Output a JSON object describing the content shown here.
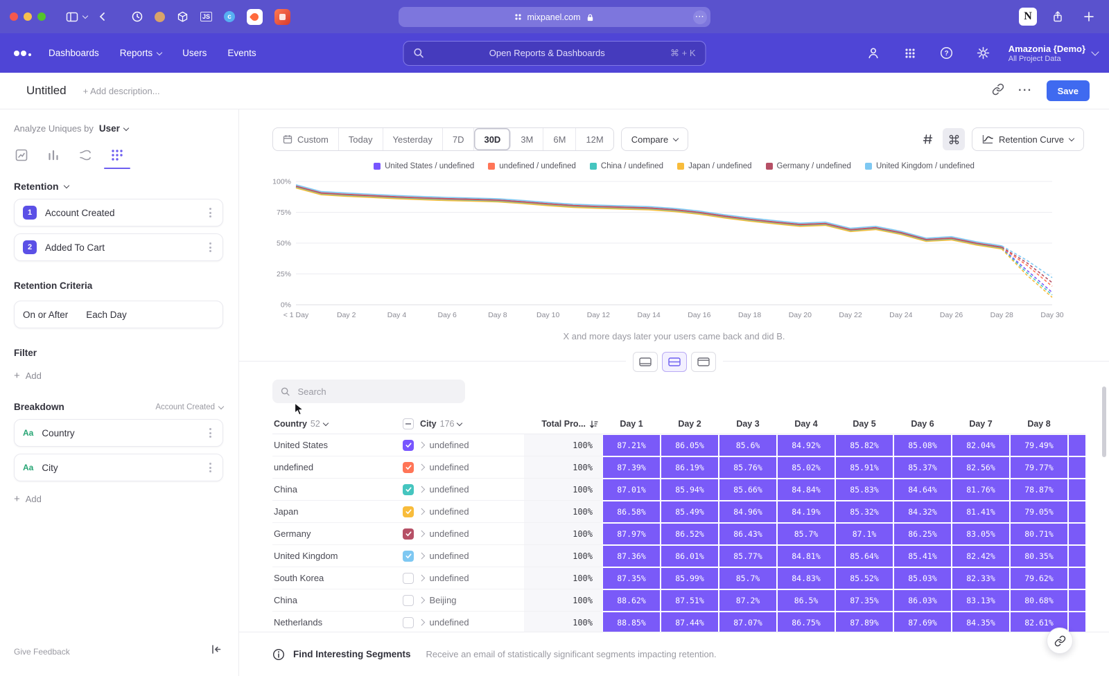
{
  "browser": {
    "url": "mixpanel.com",
    "notion_label": "N",
    "js_label": "JS",
    "c_label": "c"
  },
  "nav": {
    "items": [
      {
        "label": "Dashboards",
        "caret": false
      },
      {
        "label": "Reports",
        "caret": true
      },
      {
        "label": "Users",
        "caret": false
      },
      {
        "label": "Events",
        "caret": false
      }
    ],
    "search_placeholder": "Open Reports & Dashboards",
    "search_shortcut": "⌘ + K",
    "project_name": "Amazonia {Demo}",
    "project_scope": "All Project Data"
  },
  "header": {
    "title": "Untitled",
    "description_placeholder": "+ Add description...",
    "save_label": "Save"
  },
  "sidebar": {
    "analyze_prefix": "Analyze Uniques by",
    "analyze_value": "User",
    "section_title": "Retention",
    "steps": [
      {
        "num": "1",
        "label": "Account Created"
      },
      {
        "num": "2",
        "label": "Added To Cart"
      }
    ],
    "criteria_title": "Retention Criteria",
    "criteria_left": "On or After",
    "criteria_right": "Each Day",
    "filter_title": "Filter",
    "add_label": "Add",
    "breakdown_title": "Breakdown",
    "breakdown_scope": "Account Created",
    "breakdowns": [
      {
        "type": "Aa",
        "label": "Country"
      },
      {
        "type": "Aa",
        "label": "City"
      }
    ],
    "give_feedback": "Give Feedback"
  },
  "toolbar": {
    "date_ranges": [
      "Custom",
      "Today",
      "Yesterday",
      "7D",
      "30D",
      "3M",
      "6M",
      "12M"
    ],
    "selected_range": "30D",
    "compare_label": "Compare",
    "view_label": "Retention Curve"
  },
  "chart_data": {
    "type": "line",
    "ylim": [
      0,
      100
    ],
    "y_ticks": [
      "0%",
      "25%",
      "50%",
      "75%",
      "100%"
    ],
    "x_tick_labels": [
      "< 1 Day",
      "Day 2",
      "Day 4",
      "Day 6",
      "Day 8",
      "Day 10",
      "Day 12",
      "Day 14",
      "Day 16",
      "Day 18",
      "Day 20",
      "Day 22",
      "Day 24",
      "Day 26",
      "Day 28",
      "Day 30"
    ],
    "dash_from_index": 28,
    "legend_position": "top",
    "series": [
      {
        "name": "United States / undefined",
        "color": "#7856FF",
        "values": [
          95.5,
          90,
          88.8,
          87.8,
          86.8,
          86,
          85.3,
          84.8,
          84.2,
          82.8,
          81.2,
          79.8,
          79,
          78.4,
          77.8,
          76.4,
          74.2,
          71.2,
          68.6,
          66.4,
          64.4,
          65.2,
          60.2,
          61.8,
          57.8,
          52.2,
          53.4,
          49.2,
          46,
          28,
          10
        ]
      },
      {
        "name": "undefined / undefined",
        "color": "#FF7557",
        "values": [
          95.8,
          90.3,
          89.1,
          88.1,
          87.1,
          86.3,
          85.6,
          85.1,
          84.5,
          83.1,
          81.5,
          80.1,
          79.3,
          78.7,
          78.1,
          76.7,
          74.5,
          71.5,
          68.9,
          66.7,
          64.7,
          65.5,
          60.5,
          62.1,
          58.1,
          52.5,
          53.7,
          49.5,
          46.3,
          32,
          15
        ]
      },
      {
        "name": "China / undefined",
        "color": "#45C5BF",
        "values": [
          95.1,
          89.6,
          88.4,
          87.4,
          86.4,
          85.6,
          84.9,
          84.4,
          83.8,
          82.4,
          80.8,
          79.4,
          78.6,
          78,
          77.4,
          76,
          73.8,
          70.8,
          68.2,
          66,
          64,
          64.8,
          59.8,
          61.4,
          57.4,
          51.8,
          53,
          48.8,
          45.6,
          26,
          8
        ]
      },
      {
        "name": "Japan / undefined",
        "color": "#F8BC3B",
        "values": [
          94.7,
          89.2,
          88,
          87,
          86,
          85.2,
          84.5,
          84,
          83.4,
          82,
          80.4,
          79,
          78.2,
          77.6,
          77,
          75.6,
          73.4,
          70.4,
          67.8,
          65.6,
          63.6,
          64.4,
          59.4,
          61,
          57,
          51.4,
          52.6,
          48.4,
          45.2,
          24,
          6
        ]
      },
      {
        "name": "Germany / undefined",
        "color": "#B65066",
        "values": [
          96.3,
          90.8,
          89.6,
          88.6,
          87.6,
          86.8,
          86.1,
          85.6,
          85,
          83.6,
          82,
          80.6,
          79.8,
          79.2,
          78.6,
          77.2,
          75,
          72,
          69.4,
          67.2,
          65.2,
          66,
          61,
          62.6,
          58.6,
          53,
          54.2,
          50,
          46.8,
          34,
          18
        ]
      },
      {
        "name": "United Kingdom / undefined",
        "color": "#7EC8F2",
        "values": [
          97.3,
          91.8,
          90.6,
          89.6,
          88.6,
          87.8,
          87.1,
          86.6,
          86,
          84.6,
          83,
          81.6,
          80.8,
          80.2,
          79.6,
          78.2,
          76,
          73,
          70.4,
          68.2,
          66.2,
          67,
          62,
          63.6,
          59.6,
          54,
          55.2,
          51,
          47.8,
          36,
          22
        ]
      }
    ]
  },
  "main": {
    "caption": "X and more days later your users came back and did B."
  },
  "table": {
    "search_placeholder": "Search",
    "country_label": "Country",
    "country_count": "52",
    "city_label": "City",
    "city_count": "176",
    "total_label": "Total Pro...",
    "day_headers": [
      "Day 1",
      "Day 2",
      "Day 3",
      "Day 4",
      "Day 5",
      "Day 6",
      "Day 7",
      "Day 8",
      ""
    ],
    "rows": [
      {
        "country": "United States",
        "city": "undefined",
        "checked": true,
        "color": "#7856FF",
        "total": "100%",
        "days": [
          "87.21%",
          "86.05%",
          "85.6%",
          "84.92%",
          "85.82%",
          "85.08%",
          "82.04%",
          "79.49%",
          ""
        ]
      },
      {
        "country": "undefined",
        "city": "undefined",
        "checked": true,
        "color": "#FF7557",
        "total": "100%",
        "days": [
          "87.39%",
          "86.19%",
          "85.76%",
          "85.02%",
          "85.91%",
          "85.37%",
          "82.56%",
          "79.77%",
          ""
        ]
      },
      {
        "country": "China",
        "city": "undefined",
        "checked": true,
        "color": "#45C5BF",
        "total": "100%",
        "days": [
          "87.01%",
          "85.94%",
          "85.66%",
          "84.84%",
          "85.83%",
          "84.64%",
          "81.76%",
          "78.87%",
          ""
        ]
      },
      {
        "country": "Japan",
        "city": "undefined",
        "checked": true,
        "color": "#F8BC3B",
        "total": "100%",
        "days": [
          "86.58%",
          "85.49%",
          "84.96%",
          "84.19%",
          "85.32%",
          "84.32%",
          "81.41%",
          "79.05%",
          ""
        ]
      },
      {
        "country": "Germany",
        "city": "undefined",
        "checked": true,
        "color": "#B65066",
        "total": "100%",
        "days": [
          "87.97%",
          "86.52%",
          "86.43%",
          "85.7%",
          "87.1%",
          "86.25%",
          "83.05%",
          "80.71%",
          ""
        ]
      },
      {
        "country": "United Kingdom",
        "city": "undefined",
        "checked": true,
        "color": "#7EC8F2",
        "total": "100%",
        "days": [
          "87.36%",
          "86.01%",
          "85.77%",
          "84.81%",
          "85.64%",
          "85.41%",
          "82.42%",
          "80.35%",
          ""
        ]
      },
      {
        "country": "South Korea",
        "city": "undefined",
        "checked": false,
        "color": "",
        "total": "100%",
        "days": [
          "87.35%",
          "85.99%",
          "85.7%",
          "84.83%",
          "85.52%",
          "85.03%",
          "82.33%",
          "79.62%",
          ""
        ]
      },
      {
        "country": "China",
        "city": "Beijing",
        "checked": false,
        "color": "",
        "total": "100%",
        "days": [
          "88.62%",
          "87.51%",
          "87.2%",
          "86.5%",
          "87.35%",
          "86.03%",
          "83.13%",
          "80.68%",
          ""
        ]
      },
      {
        "country": "Netherlands",
        "city": "undefined",
        "checked": false,
        "color": "",
        "total": "100%",
        "days": [
          "88.85%",
          "87.44%",
          "87.07%",
          "86.75%",
          "87.89%",
          "87.69%",
          "84.35%",
          "82.61%",
          ""
        ]
      }
    ]
  },
  "footer": {
    "title": "Find Interesting Segments",
    "subtitle": "Receive an email of statistically significant segments impacting retention."
  }
}
